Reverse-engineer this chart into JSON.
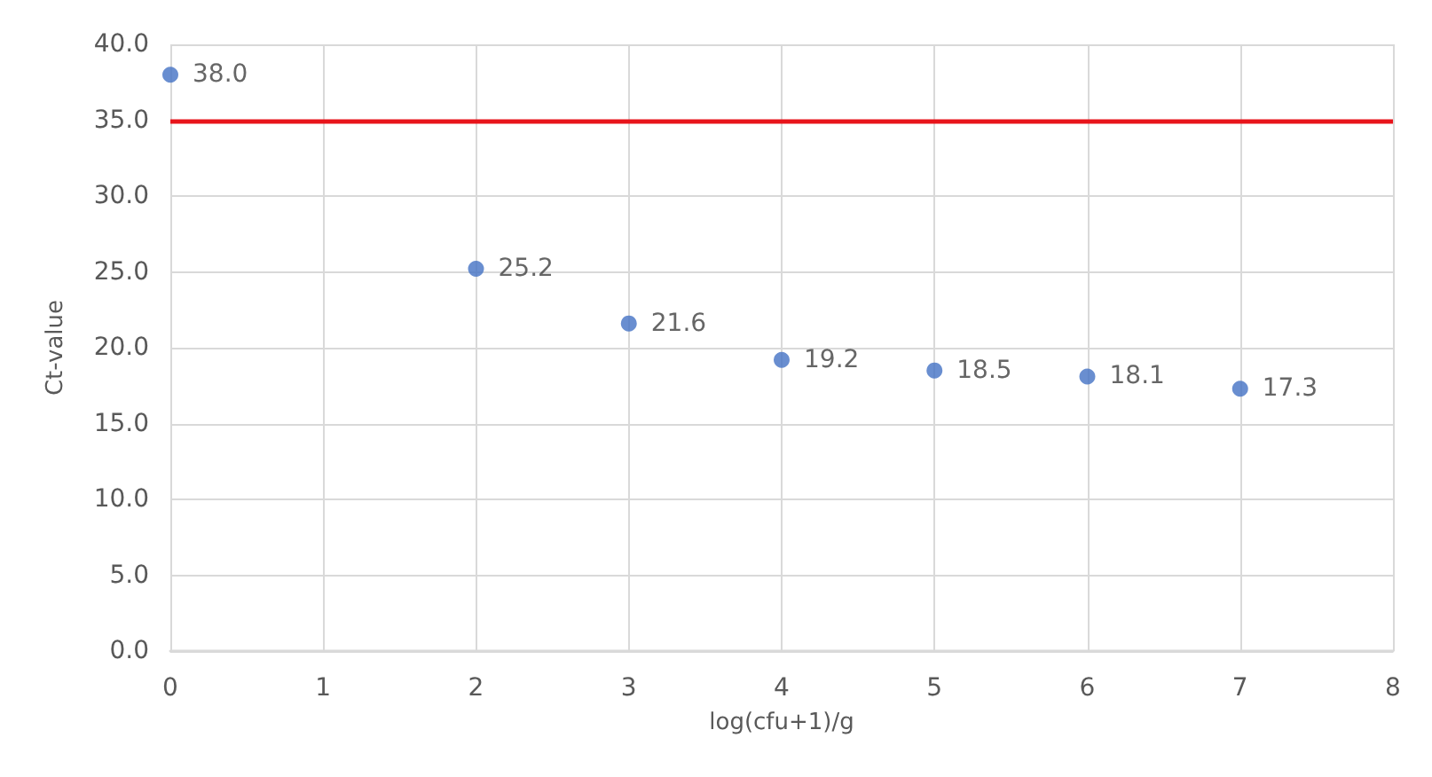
{
  "chart_data": {
    "type": "scatter",
    "xlabel": "log(cfu+1)/g",
    "ylabel": "Ct-value",
    "x": [
      0,
      2,
      3,
      4,
      5,
      6,
      7
    ],
    "series": [
      {
        "color": "#4472c4",
        "values": [
          38.0,
          25.2,
          21.6,
          19.2,
          18.5,
          18.1,
          17.3
        ],
        "value_labels": [
          "38.0",
          "25.2",
          "21.6",
          "19.2",
          "18.5",
          "18.1",
          "17.3"
        ]
      }
    ],
    "xlim": [
      0,
      8
    ],
    "xticks": [
      0,
      1,
      2,
      3,
      4,
      5,
      6,
      7,
      8
    ],
    "ylim": [
      0,
      40
    ],
    "yticks": [
      {
        "value": 0,
        "label": "0.0"
      },
      {
        "value": 5,
        "label": "5.0"
      },
      {
        "value": 10,
        "label": "10.0"
      },
      {
        "value": 15,
        "label": "15.0"
      },
      {
        "value": 20,
        "label": "20.0"
      },
      {
        "value": 25,
        "label": "25.0"
      },
      {
        "value": 30,
        "label": "30.0"
      },
      {
        "value": 35,
        "label": "35.0"
      },
      {
        "value": 40,
        "label": "40.0"
      }
    ],
    "ref_lines": [
      {
        "axis": "y",
        "value": 35,
        "color": "#e8141b"
      }
    ],
    "grid": true,
    "marker": "circle"
  }
}
